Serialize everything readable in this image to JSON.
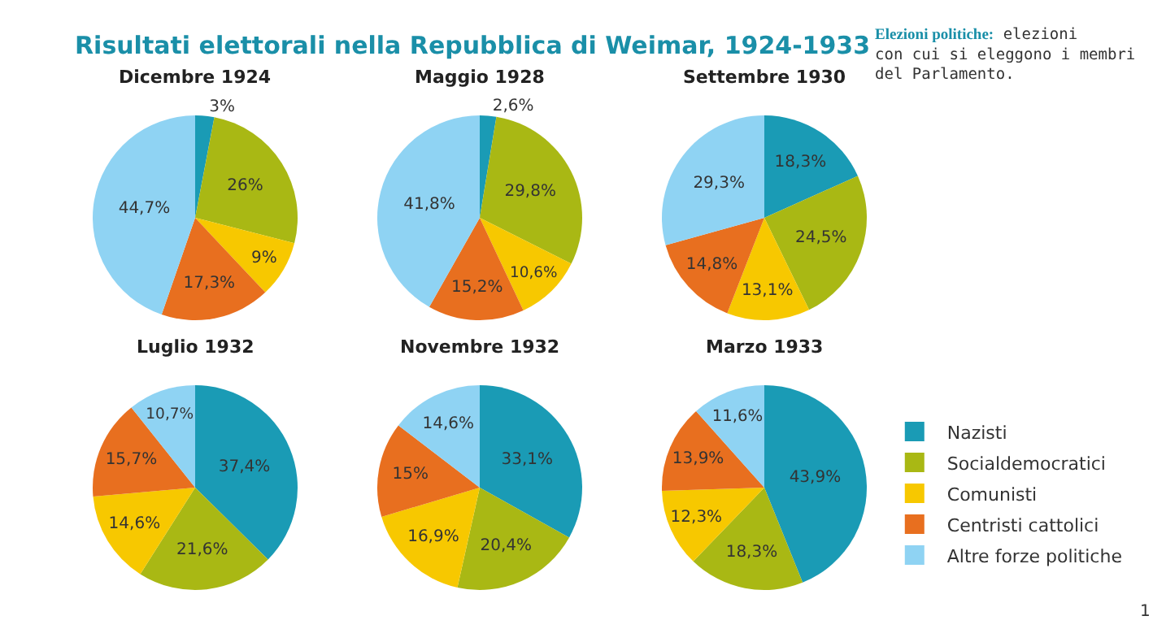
{
  "chart_data": [
    {
      "type": "other",
      "title": "Risultati elettorali nella Repubblica di Weimar, 1924-1933",
      "annotations": [
        "Elezioni politiche: elezioni con cui si eleggono i membri del Parlamento.",
        "1"
      ]
    },
    {
      "type": "pie",
      "title": "Dicembre 1924",
      "categories": [
        "Nazisti",
        "Socialdemocratici",
        "Comunisti",
        "Centristi cattolici",
        "Altre forze politiche"
      ],
      "values": [
        3,
        26,
        9,
        17.3,
        44.7
      ],
      "value_labels": [
        "3%",
        "26%",
        "9%",
        "17,3%",
        "44,7%"
      ],
      "colors": [
        "#1a9bb5",
        "#a9b814",
        "#f7c800",
        "#e86f1f",
        "#8fd3f3"
      ],
      "legend": "bottom right"
    },
    {
      "type": "pie",
      "title": "Maggio 1928",
      "categories": [
        null,
        null,
        null,
        null,
        null
      ],
      "values": [
        2.6,
        29.8,
        10.6,
        15.2,
        41.8
      ],
      "value_labels": [
        "2,6%",
        "29,8%",
        "10,6%",
        "15,2%",
        "41,8%"
      ],
      "colors": [
        "#1a9bb5",
        "#a9b814",
        "#f7c800",
        "#e86f1f",
        "#8fd3f3"
      ]
    },
    {
      "type": "pie",
      "title": "Settembre 1930",
      "categories": [
        null,
        null,
        null,
        null,
        null
      ],
      "values": [
        18.3,
        24.5,
        13.1,
        14.8,
        29.3
      ],
      "value_labels": [
        "18,3%",
        "24,5%",
        "13,1%",
        "14,8%",
        "29,3%"
      ],
      "colors": [
        "#1a9bb5",
        "#a9b814",
        "#f7c800",
        "#e86f1f",
        "#8fd3f3"
      ]
    },
    {
      "type": "pie",
      "title": "Luglio 1932",
      "categories": [
        null,
        null,
        null,
        null,
        null
      ],
      "values": [
        37.4,
        21.6,
        14.6,
        15.7,
        10.7
      ],
      "value_labels": [
        "37,4%",
        "21,6%",
        "14,6%",
        "15,7%",
        "10,7%"
      ],
      "colors": [
        "#1a9bb5",
        "#a9b814",
        "#f7c800",
        "#e86f1f",
        "#8fd3f3"
      ]
    },
    {
      "type": "pie",
      "title": "Novembre 1932",
      "categories": [
        null,
        null,
        null,
        null,
        null
      ],
      "values": [
        33.1,
        20.4,
        16.9,
        15,
        14.6
      ],
      "value_labels": [
        "33,1%",
        "20,4%",
        "16,9%",
        "15%",
        "14,6%"
      ],
      "colors": [
        "#1a9bb5",
        "#a9b814",
        "#f7c800",
        "#e86f1f",
        "#8fd3f3"
      ]
    },
    {
      "type": "pie",
      "title": "Marzo 1933",
      "categories": [
        null,
        null,
        null,
        null,
        null
      ],
      "values": [
        43.9,
        18.3,
        12.3,
        13.9,
        11.6
      ],
      "value_labels": [
        "43,9%",
        "18,3%",
        "12,3%",
        "13,9%",
        "11,6%"
      ],
      "colors": [
        "#1a9bb5",
        "#a9b814",
        "#f7c800",
        "#e86f1f",
        "#8fd3f3"
      ]
    }
  ]
}
